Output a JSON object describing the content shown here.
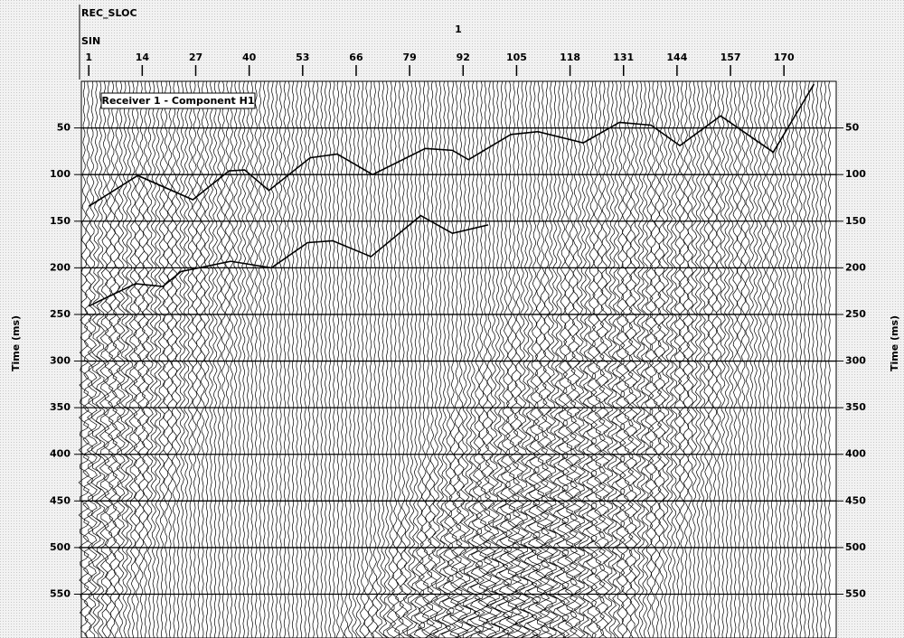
{
  "chart_data": {
    "type": "line",
    "header_label": "REC_SLOC",
    "header_value": "1",
    "axis_label_top": "SIN",
    "annotation": "Receiver 1 - Component H1",
    "ylabel": "Time (ms)",
    "y2label": "Time (ms)",
    "xlim": [
      -0.8,
      182.7
    ],
    "xticks": [
      1,
      14,
      27,
      40,
      53,
      66,
      79,
      92,
      105,
      118,
      131,
      144,
      157,
      170
    ],
    "ylim": [
      0,
      597
    ],
    "yticks": [
      50,
      100,
      150,
      200,
      250,
      300,
      350,
      400,
      450,
      500,
      550
    ],
    "grid": true,
    "series": [
      {
        "color": "#000000",
        "x": [
          1,
          12.9,
          26.3,
          35.1,
          38.9,
          44.8,
          54.8,
          61.4,
          70,
          82.8,
          89.4,
          93.3,
          103.6,
          110.2,
          121.2,
          130,
          137.7,
          144.7,
          154.6,
          167.4,
          177.3
        ],
        "values": [
          134,
          101,
          127,
          96,
          95,
          117,
          82,
          78,
          100,
          72,
          74,
          84,
          57,
          54,
          66,
          44,
          47,
          69,
          37,
          76,
          3
        ]
      },
      {
        "color": "#000000",
        "x": [
          1,
          12.4,
          19,
          23.4,
          35.5,
          45.4,
          54.2,
          60.3,
          69.6,
          81.7,
          89.4,
          98.1
        ],
        "values": [
          241,
          217,
          220,
          204,
          193,
          200,
          173,
          171,
          188,
          144,
          163,
          154
        ]
      }
    ]
  }
}
